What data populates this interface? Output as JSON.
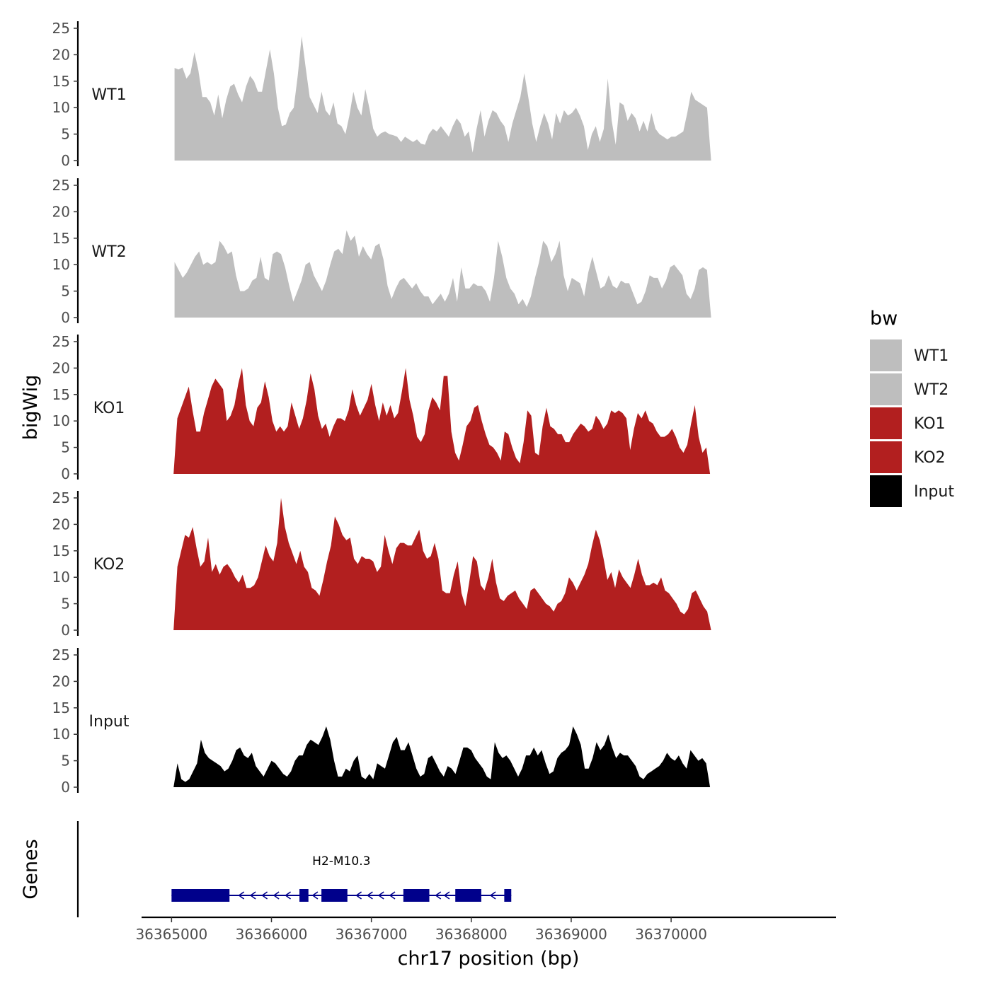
{
  "chart_data": {
    "type": "area",
    "chromosome": "chr17",
    "xlabel": "chr17 position (bp)",
    "ylabel_tracks": "bigWig",
    "ylabel_genes": "Genes",
    "xlim": [
      36364700,
      36371650
    ],
    "x_ticks": [
      36365000,
      36366000,
      36367000,
      36368000,
      36369000,
      36370000
    ],
    "x_tick_labels": [
      "36365000",
      "36366000",
      "36367000",
      "36368000",
      "36369000",
      "36370000"
    ],
    "ylim": [
      0,
      25
    ],
    "y_ticks": [
      0,
      5,
      10,
      15,
      20,
      25
    ],
    "y_tick_labels": [
      "0",
      "5",
      "10",
      "15",
      "20",
      "25"
    ],
    "legend": {
      "title": "bw",
      "placement": "right",
      "entries": [
        {
          "label": "WT1",
          "color": "#bebebe"
        },
        {
          "label": "WT2",
          "color": "#bebebe"
        },
        {
          "label": "KO1",
          "color": "#b21f1f"
        },
        {
          "label": "KO2",
          "color": "#b21f1f"
        },
        {
          "label": "Input",
          "color": "#000000"
        }
      ]
    },
    "series": [
      {
        "name": "WT1",
        "color": "#bebebe",
        "x_start": 36365030,
        "x_end": 36370400,
        "values": [
          17.5,
          17.2,
          17.6,
          15.5,
          16.5,
          20.5,
          17.0,
          12.0,
          12.0,
          11.0,
          8.5,
          12.5,
          8.0,
          11.5,
          14.0,
          14.5,
          12.5,
          11.0,
          14.0,
          16.0,
          15.0,
          13.0,
          13.0,
          17.0,
          21.0,
          16.5,
          10.0,
          6.5,
          6.8,
          9.0,
          10.0,
          16.0,
          23.5,
          17.5,
          12.0,
          10.5,
          9.0,
          13.0,
          9.5,
          8.5,
          11.0,
          7.0,
          6.5,
          5.0,
          8.5,
          13.0,
          10.0,
          8.5,
          13.5,
          10.0,
          6.0,
          4.5,
          5.2,
          5.5,
          5.0,
          4.8,
          4.5,
          3.5,
          4.5,
          4.0,
          3.5,
          4.0,
          3.2,
          3.0,
          5.0,
          6.0,
          5.5,
          6.5,
          5.5,
          4.5,
          6.5,
          8.0,
          7.0,
          4.5,
          5.5,
          1.5,
          6.0,
          9.5,
          4.5,
          7.5,
          9.5,
          9.0,
          7.5,
          6.5,
          3.5,
          7.0,
          9.5,
          12.0,
          16.5,
          12.0,
          7.0,
          3.5,
          6.5,
          9.0,
          7.0,
          4.0,
          9.0,
          7.0,
          9.5,
          8.5,
          9.0,
          10.0,
          8.5,
          6.5,
          2.0,
          5.0,
          6.5,
          3.5,
          6.0,
          15.5,
          7.5,
          3.0,
          11.0,
          10.5,
          7.5,
          9.0,
          8.0,
          5.5,
          7.5,
          5.5,
          9.0,
          6.0,
          5.0,
          4.5,
          4.0,
          4.5,
          4.5,
          5.0,
          5.5,
          9.0,
          13.0,
          11.5,
          11.0,
          10.5,
          10.0,
          0.0
        ]
      },
      {
        "name": "WT2",
        "color": "#bebebe",
        "x_start": 36365030,
        "x_end": 36370400,
        "values": [
          10.5,
          9.0,
          7.5,
          8.5,
          10.0,
          11.5,
          12.5,
          10.0,
          10.5,
          10.0,
          10.5,
          14.5,
          13.5,
          12.0,
          12.5,
          8.0,
          5.0,
          5.0,
          5.5,
          7.0,
          7.5,
          11.5,
          7.5,
          7.0,
          12.0,
          12.5,
          12.0,
          9.5,
          6.0,
          3.0,
          5.0,
          7.0,
          10.0,
          10.5,
          8.0,
          6.5,
          5.0,
          7.0,
          10.0,
          12.5,
          13.0,
          12.0,
          16.5,
          14.5,
          15.5,
          11.5,
          13.5,
          12.0,
          11.0,
          13.5,
          14.0,
          11.0,
          6.0,
          3.5,
          5.5,
          7.0,
          7.5,
          6.5,
          5.5,
          6.5,
          5.0,
          4.0,
          4.0,
          2.5,
          3.5,
          4.5,
          3.0,
          4.5,
          7.5,
          3.0,
          9.5,
          5.5,
          5.5,
          6.5,
          6.0,
          6.0,
          5.0,
          3.0,
          7.5,
          14.5,
          11.5,
          7.5,
          5.5,
          4.5,
          2.5,
          3.5,
          2.0,
          4.0,
          7.5,
          10.5,
          14.5,
          13.5,
          10.5,
          12.0,
          14.5,
          8.0,
          5.0,
          7.5,
          7.0,
          6.5,
          4.0,
          8.5,
          11.5,
          8.5,
          5.5,
          6.0,
          8.0,
          6.0,
          5.5,
          7.0,
          6.5,
          6.5,
          4.5,
          2.5,
          3.0,
          5.0,
          8.0,
          7.5,
          7.5,
          5.5,
          7.0,
          9.5,
          10.0,
          9.0,
          8.0,
          4.5,
          3.5,
          5.5,
          9.0,
          9.5,
          9.0,
          0.0
        ]
      },
      {
        "name": "KO1",
        "color": "#b21f1f",
        "x_start": 36365020,
        "x_end": 36370390,
        "values": [
          0.0,
          10.5,
          12.5,
          14.5,
          16.5,
          12.0,
          8.0,
          8.0,
          11.5,
          14.0,
          16.5,
          18.0,
          17.0,
          16.0,
          10.0,
          11.0,
          13.0,
          17.0,
          20.0,
          13.0,
          10.0,
          9.0,
          12.5,
          13.5,
          17.5,
          14.5,
          10.0,
          8.0,
          9.0,
          8.0,
          9.0,
          13.5,
          11.0,
          8.5,
          10.5,
          14.0,
          19.0,
          16.0,
          11.0,
          8.5,
          9.5,
          7.0,
          9.0,
          10.5,
          10.5,
          10.0,
          12.0,
          16.0,
          13.0,
          11.0,
          12.5,
          14.0,
          17.0,
          13.0,
          10.0,
          13.5,
          11.0,
          13.0,
          10.5,
          11.5,
          15.5,
          20.0,
          14.0,
          11.0,
          7.0,
          6.0,
          7.5,
          12.0,
          14.5,
          13.5,
          12.0,
          18.5,
          18.5,
          8.0,
          4.0,
          2.5,
          5.5,
          9.0,
          10.0,
          12.5,
          13.0,
          10.0,
          7.5,
          5.5,
          5.0,
          4.0,
          2.5,
          8.0,
          7.5,
          5.0,
          3.0,
          2.0,
          6.0,
          12.0,
          11.0,
          4.0,
          3.5,
          9.0,
          12.5,
          9.0,
          8.5,
          7.5,
          7.5,
          6.0,
          6.0,
          7.5,
          8.5,
          9.5,
          9.0,
          8.0,
          8.5,
          11.0,
          10.0,
          8.5,
          9.5,
          12.0,
          11.5,
          12.0,
          11.5,
          10.5,
          4.5,
          8.5,
          11.5,
          10.5,
          12.0,
          10.0,
          9.5,
          8.0,
          7.0,
          7.0,
          7.5,
          8.5,
          7.0,
          5.0,
          4.0,
          5.5,
          9.5,
          13.0,
          7.0,
          4.0,
          5.0,
          0.0
        ]
      },
      {
        "name": "KO2",
        "color": "#b21f1f",
        "x_start": 36365020,
        "x_end": 36370400,
        "values": [
          0.0,
          12.0,
          15.0,
          18.0,
          17.5,
          19.5,
          15.5,
          12.0,
          13.0,
          17.5,
          11.0,
          12.5,
          10.5,
          12.0,
          12.5,
          11.5,
          10.0,
          9.0,
          10.5,
          8.0,
          8.0,
          8.5,
          10.0,
          13.0,
          16.0,
          14.0,
          13.0,
          16.5,
          25.0,
          19.5,
          16.5,
          14.5,
          12.5,
          15.0,
          12.0,
          11.0,
          8.0,
          7.5,
          6.5,
          9.5,
          13.0,
          16.0,
          21.5,
          20.0,
          18.0,
          17.0,
          17.5,
          13.5,
          12.5,
          14.0,
          13.5,
          13.5,
          13.0,
          11.0,
          12.0,
          18.0,
          15.0,
          12.5,
          15.5,
          16.5,
          16.5,
          16.0,
          16.0,
          17.5,
          19.0,
          15.0,
          13.5,
          14.0,
          16.5,
          13.5,
          7.5,
          7.0,
          7.0,
          10.5,
          13.0,
          7.0,
          4.5,
          9.0,
          14.0,
          13.0,
          8.5,
          7.5,
          10.0,
          13.5,
          9.0,
          6.0,
          5.5,
          6.5,
          7.0,
          7.5,
          6.0,
          5.0,
          4.0,
          7.5,
          8.0,
          7.0,
          6.0,
          5.0,
          4.5,
          3.5,
          5.0,
          5.5,
          7.0,
          10.0,
          9.0,
          7.5,
          9.0,
          10.5,
          12.5,
          16.0,
          19.0,
          17.0,
          13.5,
          9.5,
          11.0,
          8.0,
          11.5,
          10.0,
          9.0,
          8.0,
          10.5,
          13.5,
          10.5,
          8.5,
          8.5,
          9.0,
          8.5,
          10.0,
          7.5,
          7.0,
          6.0,
          5.0,
          3.5,
          3.0,
          4.0,
          7.0,
          7.5,
          6.0,
          4.5,
          3.5,
          0.0
        ]
      },
      {
        "name": "Input",
        "color": "#000000",
        "x_start": 36365020,
        "x_end": 36370390,
        "values": [
          0.0,
          4.5,
          1.5,
          1.0,
          1.5,
          3.0,
          4.5,
          9.0,
          6.5,
          5.5,
          5.0,
          4.5,
          4.0,
          3.0,
          3.5,
          5.0,
          7.0,
          7.5,
          6.0,
          5.5,
          6.5,
          4.0,
          3.0,
          2.0,
          3.5,
          5.0,
          4.5,
          3.5,
          2.5,
          2.0,
          3.0,
          5.0,
          6.0,
          6.0,
          8.0,
          9.0,
          8.5,
          8.0,
          9.5,
          11.5,
          9.0,
          5.0,
          2.0,
          2.0,
          3.5,
          3.0,
          5.0,
          6.0,
          2.0,
          1.5,
          2.5,
          1.5,
          4.5,
          4.0,
          3.5,
          6.0,
          8.5,
          9.5,
          7.0,
          7.0,
          8.5,
          6.0,
          3.5,
          2.0,
          2.5,
          5.5,
          6.0,
          4.5,
          3.0,
          2.0,
          4.0,
          3.5,
          2.5,
          5.0,
          7.5,
          7.5,
          7.0,
          5.5,
          4.5,
          3.5,
          2.0,
          1.5,
          8.5,
          6.5,
          5.5,
          6.0,
          5.0,
          3.5,
          2.0,
          3.5,
          6.0,
          6.0,
          7.5,
          6.0,
          7.0,
          4.5,
          2.5,
          3.0,
          5.5,
          6.5,
          7.0,
          8.0,
          11.5,
          10.0,
          8.0,
          3.5,
          3.5,
          5.5,
          8.5,
          7.0,
          8.0,
          10.0,
          7.5,
          5.5,
          6.5,
          6.0,
          6.0,
          5.0,
          4.0,
          2.0,
          1.5,
          2.5,
          3.0,
          3.5,
          4.0,
          5.0,
          6.5,
          5.5,
          5.0,
          6.0,
          4.5,
          3.5,
          7.0,
          6.0,
          5.0,
          5.5,
          4.5,
          0.0
        ]
      }
    ],
    "genes": [
      {
        "name": "H2-M10.3",
        "strand": "-",
        "start": 36365000,
        "end": 36368400,
        "exons": [
          [
            36365000,
            36365580
          ],
          [
            36366280,
            36366370
          ],
          [
            36366500,
            36366760
          ],
          [
            36367320,
            36367580
          ],
          [
            36367840,
            36368100
          ],
          [
            36368330,
            36368400
          ]
        ]
      }
    ]
  }
}
